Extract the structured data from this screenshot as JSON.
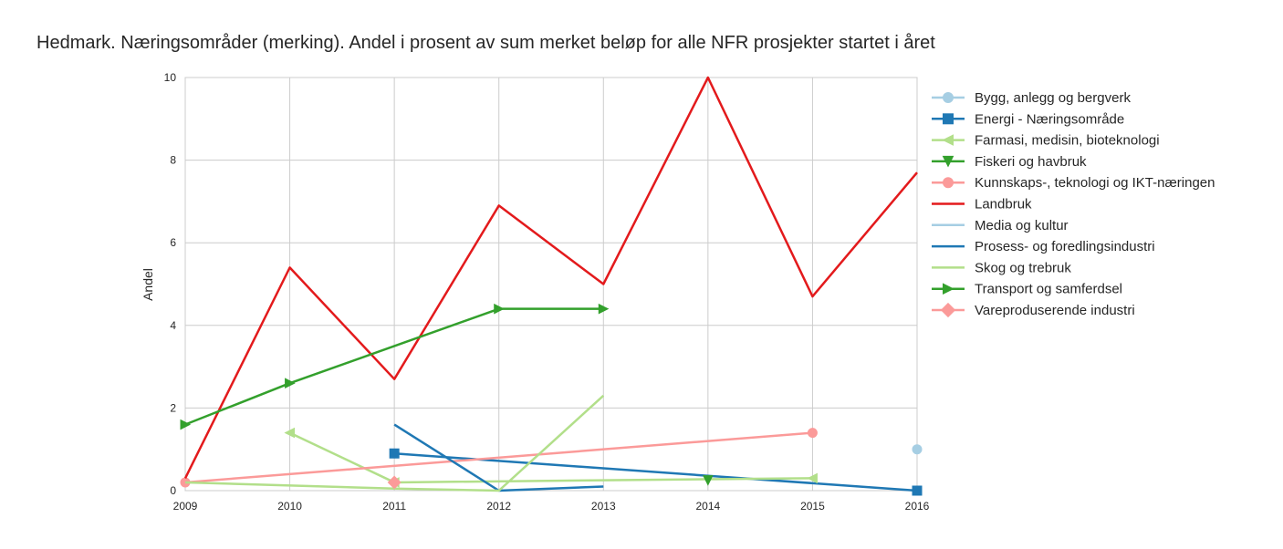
{
  "chart_data": {
    "type": "line",
    "title": "Hedmark. Næringsområder (merking). Andel i prosent av sum merket beløp for alle NFR prosjekter startet i året",
    "xlabel": "",
    "ylabel": "Andel",
    "xlim": [
      2009,
      2016
    ],
    "ylim": [
      0,
      10
    ],
    "x_ticks": [
      "2009",
      "2010",
      "2011",
      "2012",
      "2013",
      "2014",
      "2015",
      "2016"
    ],
    "y_ticks": [
      "0",
      "2",
      "4",
      "6",
      "8",
      "10"
    ],
    "grid": true,
    "legend_position": "right",
    "series": [
      {
        "name": "Bygg, anlegg og bergverk",
        "color": "#a6cee3",
        "marker": "circle",
        "points": [
          [
            2016,
            1.0
          ]
        ]
      },
      {
        "name": "Energi - Næringsområde",
        "color": "#1f78b4",
        "marker": "square",
        "points": [
          [
            2011,
            0.9
          ],
          [
            2016,
            0.0
          ]
        ]
      },
      {
        "name": "Farmasi, medisin, bioteknologi",
        "color": "#b2df8a",
        "marker": "triangle-left",
        "points": [
          [
            2010,
            1.4
          ],
          [
            2011,
            0.2
          ],
          [
            2015,
            0.3
          ]
        ]
      },
      {
        "name": "Fiskeri og havbruk",
        "color": "#33a02c",
        "marker": "triangle-down",
        "points": [
          [
            2014,
            0.25
          ]
        ]
      },
      {
        "name": "Kunnskaps-, teknologi og IKT-næringen",
        "color": "#fb9a99",
        "marker": "circle",
        "points": [
          [
            2009,
            0.2
          ],
          [
            2015,
            1.4
          ]
        ]
      },
      {
        "name": "Landbruk",
        "color": "#e31a1c",
        "marker": "none",
        "points": [
          [
            2009,
            0.3
          ],
          [
            2010,
            5.4
          ],
          [
            2011,
            2.7
          ],
          [
            2012,
            6.9
          ],
          [
            2013,
            5.0
          ],
          [
            2014,
            10.0
          ],
          [
            2015,
            4.7
          ],
          [
            2016,
            7.7
          ]
        ]
      },
      {
        "name": "Media og kultur",
        "color": "#a6cee3",
        "marker": "none",
        "points": []
      },
      {
        "name": "Prosess- og foredlingsindustri",
        "color": "#1f78b4",
        "marker": "none",
        "points": [
          [
            2011,
            1.6
          ],
          [
            2012,
            0.0
          ],
          [
            2013,
            0.1
          ]
        ]
      },
      {
        "name": "Skog og trebruk",
        "color": "#b2df8a",
        "marker": "none",
        "points": [
          [
            2009,
            0.2
          ],
          [
            2011,
            0.05
          ],
          [
            2012,
            0.0
          ],
          [
            2013,
            2.3
          ]
        ]
      },
      {
        "name": "Transport og samferdsel",
        "color": "#33a02c",
        "marker": "triangle-right",
        "points": [
          [
            2009,
            1.6
          ],
          [
            2010,
            2.6
          ],
          [
            2012,
            4.4
          ],
          [
            2013,
            4.4
          ]
        ]
      },
      {
        "name": "Vareproduserende industri",
        "color": "#fb9a99",
        "marker": "diamond",
        "points": [
          [
            2011,
            0.2
          ]
        ]
      }
    ]
  }
}
